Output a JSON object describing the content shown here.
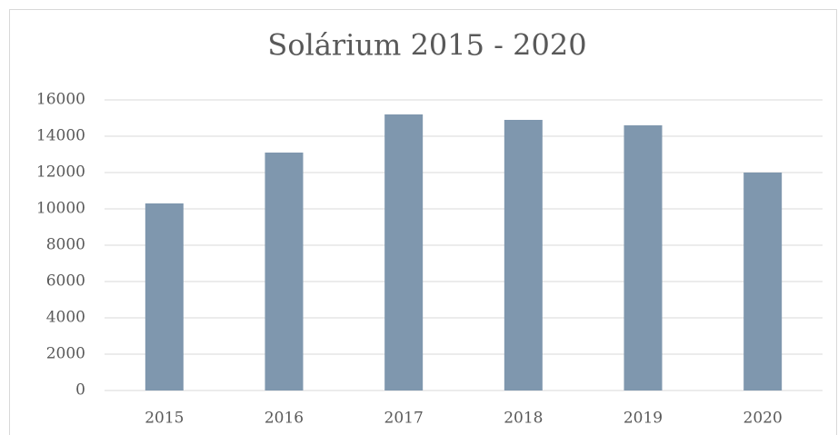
{
  "chart_data": {
    "type": "bar",
    "title": "Solárium 2015 - 2020",
    "categories": [
      "2015",
      "2016",
      "2017",
      "2018",
      "2019",
      "2020"
    ],
    "values": [
      10300,
      13100,
      15200,
      14900,
      14600,
      12000
    ],
    "color": "#7f97ae",
    "ylim": [
      0,
      16000
    ],
    "yticks": [
      0,
      2000,
      4000,
      6000,
      8000,
      10000,
      12000,
      14000,
      16000
    ],
    "grid": true
  }
}
